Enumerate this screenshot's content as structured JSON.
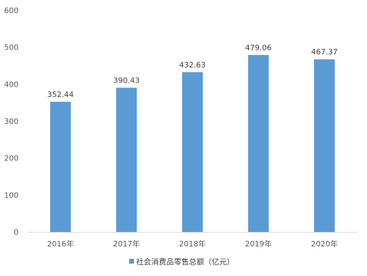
{
  "chart_data": {
    "type": "bar",
    "categories": [
      "2016年",
      "2017年",
      "2018年",
      "2019年",
      "2020年"
    ],
    "series": [
      {
        "name": "社会消费品零售总额（亿元）",
        "values": [
          352.44,
          390.43,
          432.63,
          479.06,
          467.37
        ],
        "value_labels": [
          "352.44",
          "390.43",
          "432.63",
          "479.06",
          "467.37"
        ],
        "color": "#5b9bd5"
      }
    ],
    "yticks": [
      "0",
      "100",
      "200",
      "300",
      "400",
      "500",
      "600"
    ],
    "ylim": [
      0,
      600
    ],
    "grid": false,
    "legend": "bottom",
    "title": "",
    "xlabel": "",
    "ylabel": ""
  }
}
